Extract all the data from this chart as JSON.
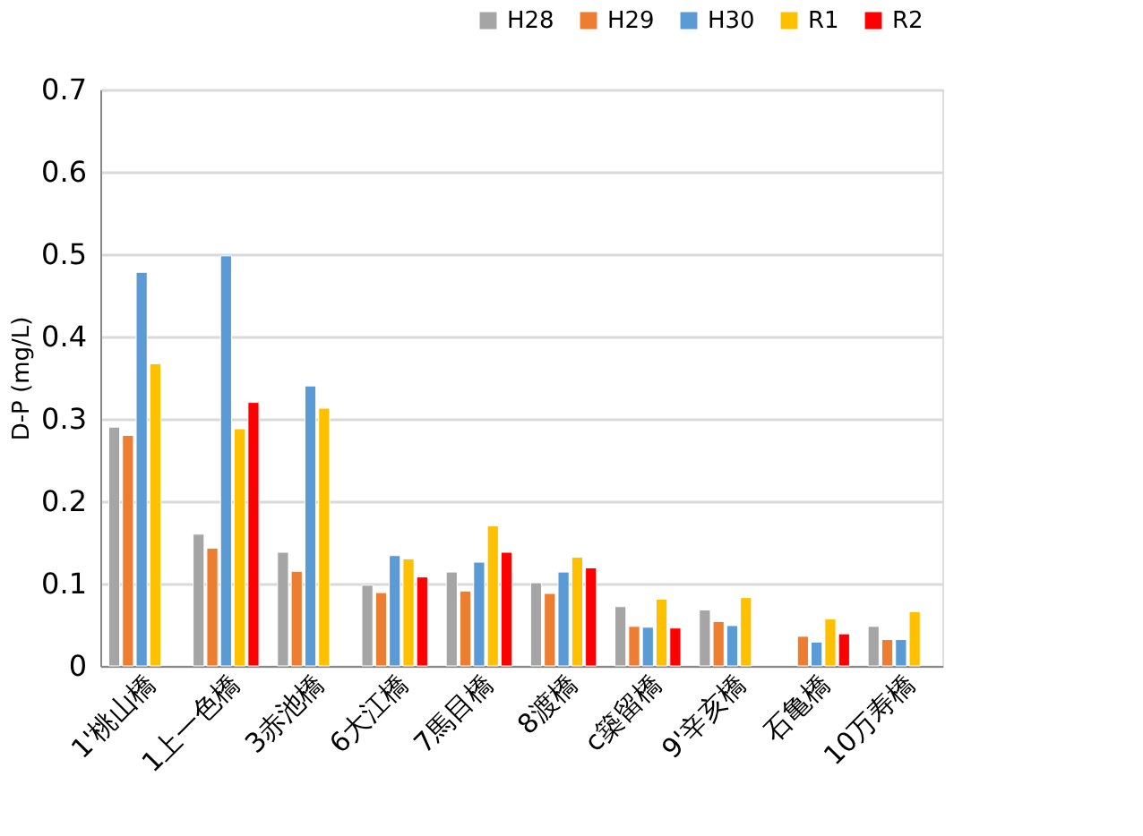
{
  "chart_data": {
    "type": "bar",
    "ylabel": "D-P (mg/L)",
    "categories": [
      "1'桃山橋",
      "1上一色橋",
      "3赤池橋",
      "6大江橋",
      "7馬目橋",
      "8渡橋",
      "c築留橋",
      "9'辛亥橋",
      "石亀橋",
      "10万寿橋"
    ],
    "series": [
      {
        "name": "H28",
        "color": "#a5a5a5",
        "values": [
          0.29,
          0.16,
          0.138,
          0.098,
          0.114,
          0.101,
          0.072,
          0.068,
          null,
          0.048
        ]
      },
      {
        "name": "H29",
        "color": "#ed7d31",
        "values": [
          0.28,
          0.143,
          0.115,
          0.089,
          0.091,
          0.088,
          0.048,
          0.054,
          0.036,
          0.032
        ]
      },
      {
        "name": "H30",
        "color": "#5b9bd5",
        "values": [
          0.478,
          0.498,
          0.34,
          0.134,
          0.126,
          0.114,
          0.047,
          0.049,
          0.029,
          0.032
        ]
      },
      {
        "name": "R1",
        "color": "#ffc000",
        "values": [
          0.367,
          0.288,
          0.313,
          0.13,
          0.17,
          0.132,
          0.081,
          0.083,
          0.057,
          0.066
        ]
      },
      {
        "name": "R2",
        "color": "#ff0000",
        "values": [
          null,
          0.32,
          null,
          0.108,
          0.138,
          0.119,
          0.046,
          null,
          0.039,
          null
        ]
      }
    ],
    "ylim": [
      0,
      0.7
    ],
    "yticks": [
      0,
      0.1,
      0.2,
      0.3,
      0.4,
      0.5,
      0.6,
      0.7
    ],
    "grid": "y",
    "legend": "top right"
  }
}
